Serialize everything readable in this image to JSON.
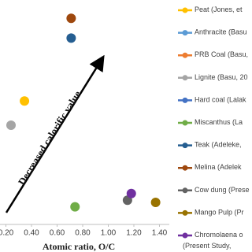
{
  "chart_data": {
    "type": "scatter",
    "x_label": "Atomic ratio, O/C",
    "annotation": "Decreased calorific value",
    "xlim": [
      0.2,
      1.4
    ],
    "xticks": [
      {
        "value": 0.2,
        "label": "0.20"
      },
      {
        "value": 0.4,
        "label": "0.40"
      },
      {
        "value": 0.6,
        "label": "0.60"
      },
      {
        "value": 0.8,
        "label": "0.80"
      },
      {
        "value": 1.0,
        "label": "1.00"
      },
      {
        "value": 1.2,
        "label": "1.20"
      },
      {
        "value": 1.4,
        "label": "1.40"
      }
    ],
    "ylim": [
      0,
      2.0
    ],
    "series": [
      {
        "name": "Peat (Jones, et",
        "color": "#ffc000",
        "x": [
          0.345
        ],
        "values": [
          1.12
        ]
      },
      {
        "name": "Anthracite (Basu",
        "color": "#5b9bd5",
        "x": [],
        "values": []
      },
      {
        "name": "PRB Coal (Basu,",
        "color": "#ed7d31",
        "x": [],
        "values": []
      },
      {
        "name": "Lignite (Basu, 20",
        "color": "#a5a5a5",
        "x": [
          0.24
        ],
        "values": [
          0.9
        ]
      },
      {
        "name": "Hard coal (Lalak",
        "color": "#4472c4",
        "x": [],
        "values": []
      },
      {
        "name": "Miscanthus  (La",
        "color": "#70ad47",
        "x": [
          0.74
        ],
        "values": [
          0.16
        ]
      },
      {
        "name": "Teak (Adeleke,",
        "color": "#255e91",
        "x": [
          0.71
        ],
        "values": [
          1.69
        ]
      },
      {
        "name": "Melina (Adelek",
        "color": "#9e480e",
        "x": [
          0.71
        ],
        "values": [
          1.87
        ]
      },
      {
        "name": "Cow dung (Prese",
        "color": "#636363",
        "x": [
          1.15
        ],
        "values": [
          0.22
        ]
      },
      {
        "name": "Mango Pulp (Pr",
        "color": "#997300",
        "x": [
          1.37
        ],
        "values": [
          0.2
        ]
      },
      {
        "name": "Chromolaena o\n(Present Study,",
        "color": "#7030a0",
        "x": [
          1.18
        ],
        "values": [
          0.28
        ]
      }
    ]
  }
}
